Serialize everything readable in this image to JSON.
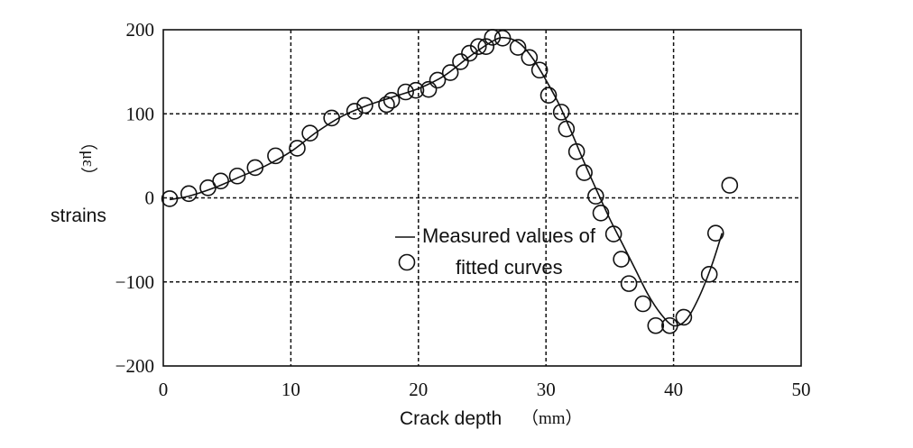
{
  "chart_data": {
    "type": "line",
    "title": "",
    "xlabel": "Crack depth",
    "xlabel_unit": "（mm）",
    "ylabel": "strains",
    "ylabel_unit": "（με）",
    "xlim": [
      0,
      50
    ],
    "ylim": [
      -200,
      200
    ],
    "xticks": [
      0,
      10,
      20,
      30,
      40,
      50
    ],
    "yticks": [
      200,
      100,
      0,
      -100,
      -200
    ],
    "xtick_labels": [
      "0",
      "10",
      "20",
      "30",
      "40",
      "50"
    ],
    "ytick_labels": [
      "200",
      "100",
      "0",
      "−100",
      "−200"
    ],
    "grid": "dashed",
    "legend": {
      "position": "center",
      "line_label": "Measured values of",
      "marker_label": "fitted curves"
    },
    "series": [
      {
        "name": "Measured values",
        "style": "line",
        "x": [
          0.5,
          2,
          4,
          6,
          8,
          10,
          12,
          14,
          16,
          18,
          20,
          22,
          24,
          26,
          27,
          28,
          29,
          30,
          31,
          32,
          33,
          34,
          35,
          36,
          37,
          38,
          39,
          40,
          41,
          42,
          43,
          43.8
        ],
        "y": [
          -2,
          2,
          12,
          25,
          38,
          55,
          78,
          97,
          110,
          120,
          130,
          145,
          168,
          188,
          190,
          183,
          165,
          140,
          112,
          78,
          42,
          8,
          -25,
          -55,
          -85,
          -115,
          -138,
          -152,
          -145,
          -118,
          -80,
          -42
        ]
      },
      {
        "name": "fitted curves",
        "style": "marker",
        "x": [
          0.5,
          2,
          3.5,
          4.5,
          5.8,
          7.2,
          8.8,
          10.5,
          11.5,
          13.2,
          15,
          15.8,
          17.5,
          17.9,
          19,
          19.8,
          20.8,
          21.5,
          22.5,
          23.3,
          24,
          24.7,
          25.3,
          25.8,
          26.6,
          27.8,
          28.7,
          29.5,
          30.2,
          31.2,
          31.6,
          32.4,
          33,
          33.9,
          34.3,
          35.3,
          35.9,
          36.5,
          37.6,
          38.6,
          39.7,
          40.8,
          42.8,
          43.3,
          44.4
        ],
        "y": [
          -1,
          5,
          12,
          20,
          26,
          36,
          50,
          59,
          77,
          95,
          103,
          110,
          111,
          116,
          126,
          128,
          129,
          140,
          149,
          162,
          172,
          180,
          180,
          191,
          190,
          179,
          167,
          152,
          122,
          102,
          82,
          55,
          30,
          2,
          -18,
          -43,
          -73,
          -102,
          -126,
          -152,
          -152,
          -142,
          -91,
          -42,
          15
        ]
      }
    ]
  }
}
